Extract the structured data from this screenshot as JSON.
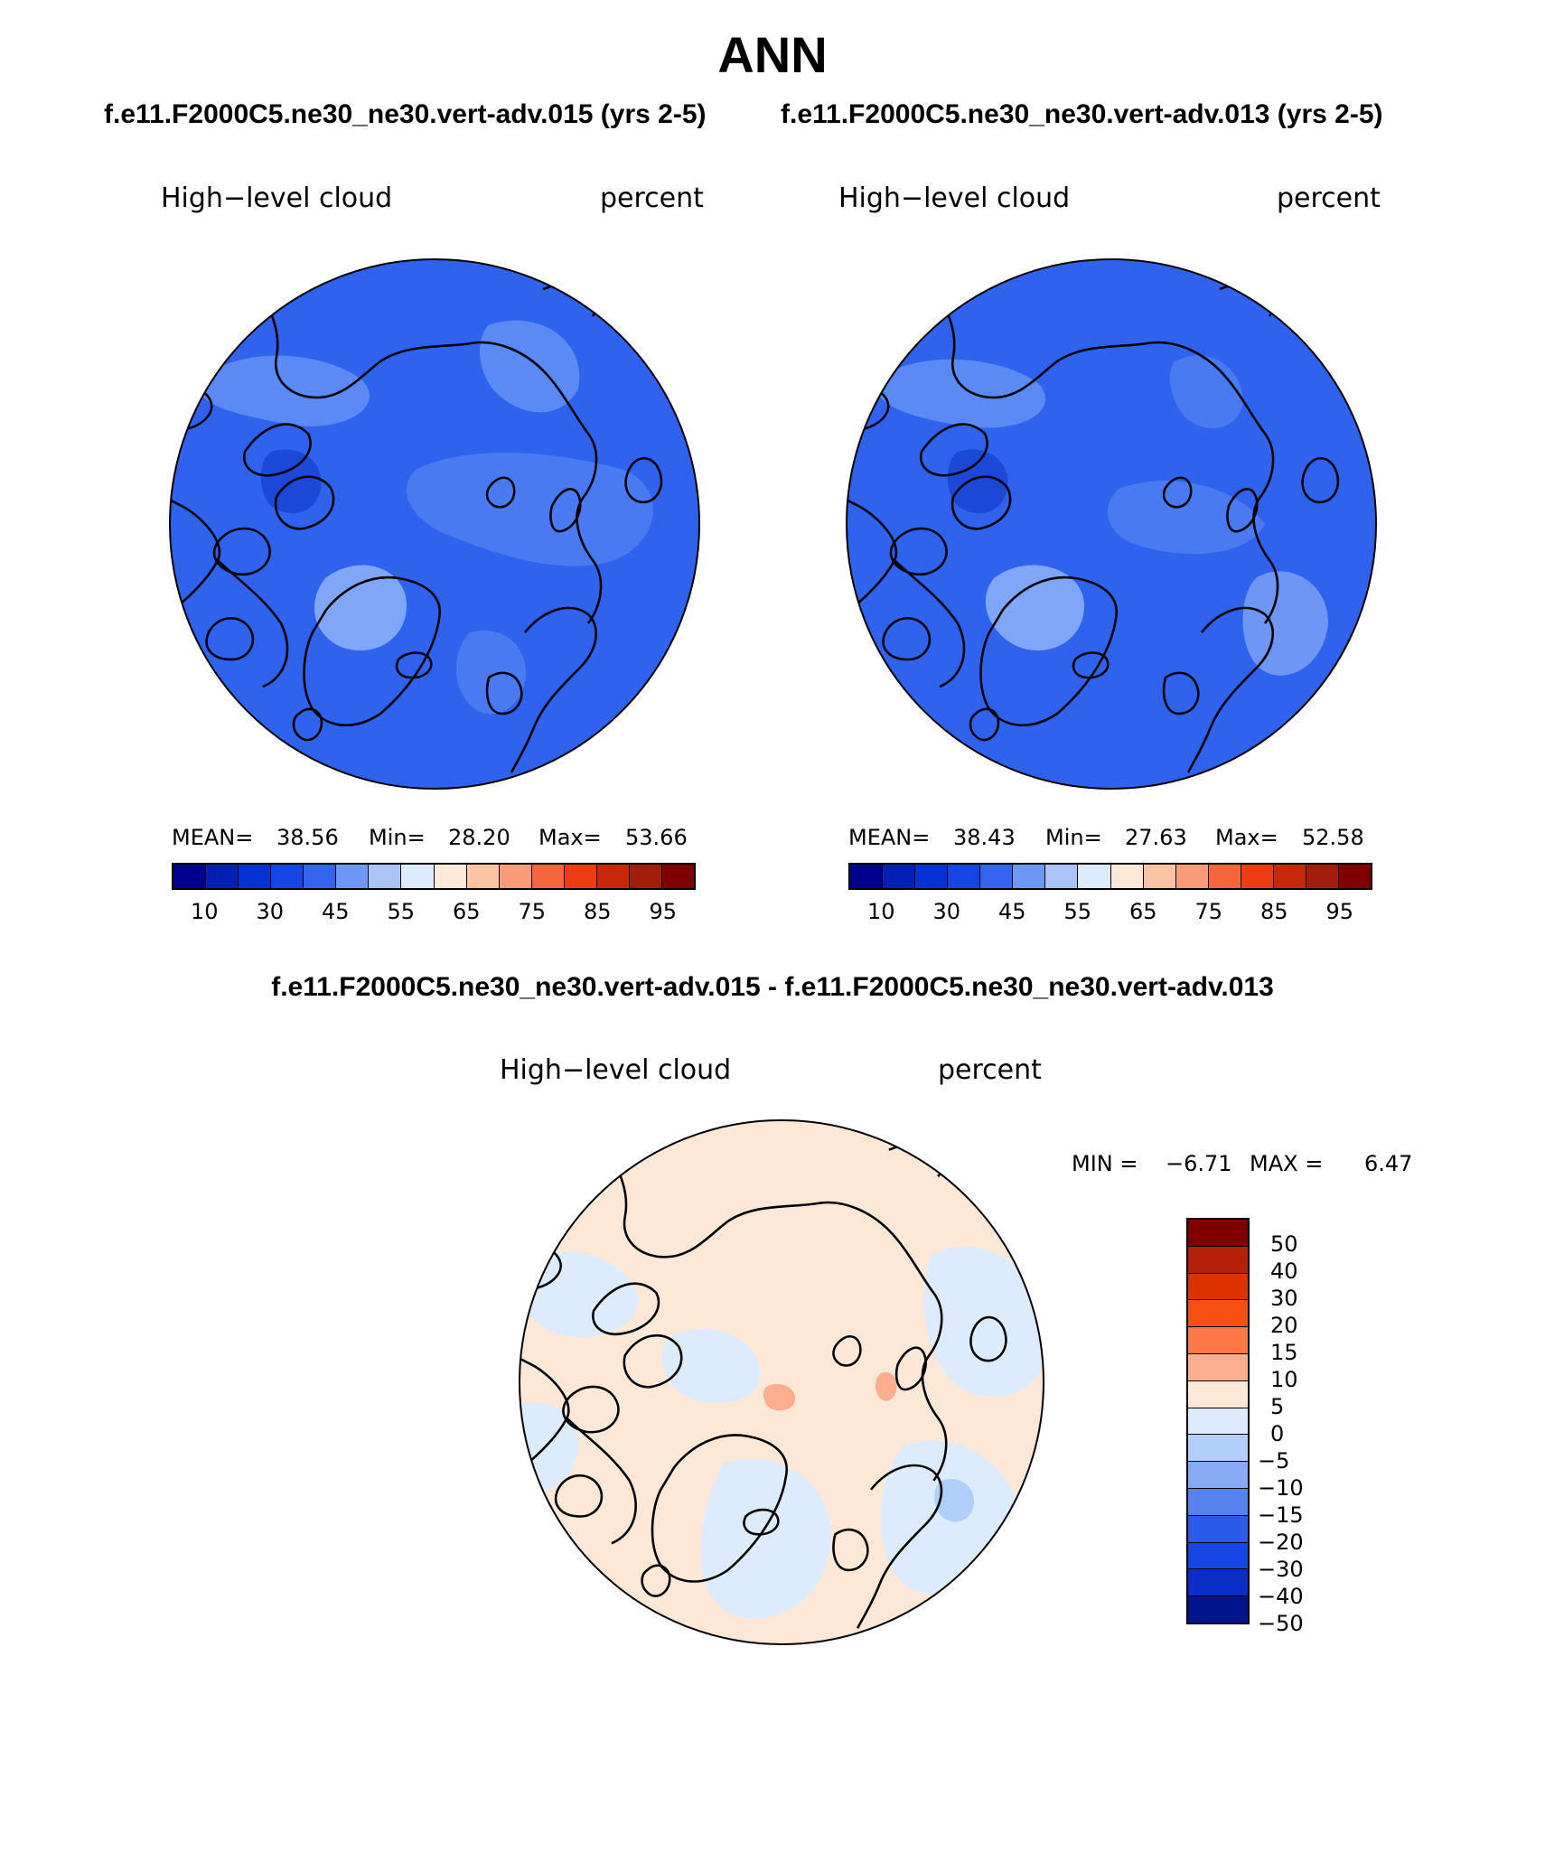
{
  "title": "ANN",
  "panels": [
    {
      "case": "f.e11.F2000C5.ne30_ne30.vert-adv.015 (yrs 2-5)",
      "variable": "High−level cloud",
      "units": "percent",
      "mean_label": "MEAN=",
      "mean": "38.56",
      "min_label": "Min=",
      "min": "28.20",
      "max_label": "Max=",
      "max": "53.66"
    },
    {
      "case": "f.e11.F2000C5.ne30_ne30.vert-adv.013 (yrs 2-5)",
      "variable": "High−level cloud",
      "units": "percent",
      "mean_label": "MEAN=",
      "mean": "38.43",
      "min_label": "Min=",
      "min": "27.63",
      "max_label": "Max=",
      "max": "52.58"
    }
  ],
  "diff": {
    "case": "f.e11.F2000C5.ne30_ne30.vert-adv.015 - f.e11.F2000C5.ne30_ne30.vert-adv.013",
    "variable": "High−level cloud",
    "units": "percent",
    "min_label": "MIN =",
    "min": "−6.71",
    "max_label": "MAX =",
    "max": "6.47"
  },
  "colorbar_abs": {
    "colors": [
      "#00008c",
      "#0020b4",
      "#0532d2",
      "#1446e6",
      "#3264ee",
      "#6e96f5",
      "#aac4fa",
      "#dcebfd",
      "#fde9d9",
      "#fcc3a5",
      "#f99b78",
      "#f5663c",
      "#eb3c14",
      "#c8280a",
      "#a01e0a",
      "#800000"
    ],
    "labels": [
      "10",
      "30",
      "45",
      "55",
      "65",
      "75",
      "85",
      "95"
    ]
  },
  "colorbar_diff": {
    "colors": [
      "#800000",
      "#b4200a",
      "#dc3200",
      "#f55014",
      "#ff7846",
      "#fcae8e",
      "#fde8d8",
      "#dcebfd",
      "#b2cefa",
      "#86aaf5",
      "#5682ee",
      "#2b5ae8",
      "#1446e6",
      "#0a2dc8",
      "#00148c"
    ],
    "labels": [
      "50",
      "40",
      "30",
      "20",
      "15",
      "10",
      "5",
      "0",
      "−5",
      "−10",
      "−15",
      "−20",
      "−30",
      "−40",
      "−50"
    ]
  }
}
